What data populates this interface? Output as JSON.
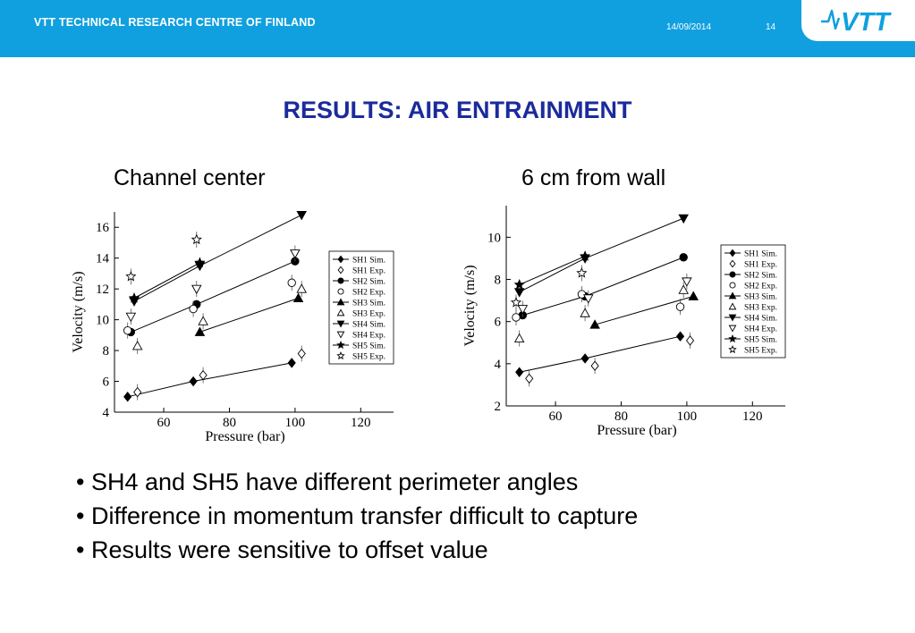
{
  "header": {
    "org": "VTT TECHNICAL RESEARCH CENTRE OF FINLAND",
    "date": "14/09/2014",
    "page": "14",
    "logo_text": "VTT",
    "brand_color": "#10a0df"
  },
  "title": "RESULTS: AIR ENTRAINMENT",
  "subtitles": {
    "left": "Channel center",
    "right": "6 cm from wall"
  },
  "bullets": [
    "SH4 and SH5 have different perimeter angles",
    "Difference in momentum transfer difficult to capture",
    "Results were sensitive to offset value"
  ],
  "chart_data": [
    {
      "type": "line",
      "title": "",
      "xlabel": "Pressure (bar)",
      "ylabel": "Velocity (m/s)",
      "xlim": [
        45,
        130
      ],
      "ylim": [
        4,
        17
      ],
      "xticks": [
        60,
        80,
        100,
        120
      ],
      "yticks": [
        4,
        6,
        8,
        10,
        12,
        14,
        16
      ],
      "legend": "right",
      "series": [
        {
          "name": "SH1 Sim.",
          "marker": "diamond",
          "filled": true,
          "line": true,
          "points": [
            [
              49,
              5.0
            ],
            [
              69,
              6.0
            ],
            [
              99,
              7.2
            ]
          ]
        },
        {
          "name": "SH1 Exp.",
          "marker": "diamond",
          "filled": false,
          "line": false,
          "points": [
            [
              52,
              5.3
            ],
            [
              72,
              6.4
            ],
            [
              102,
              7.8
            ]
          ]
        },
        {
          "name": "SH2 Sim.",
          "marker": "circle",
          "filled": true,
          "line": true,
          "points": [
            [
              50,
              9.2
            ],
            [
              70,
              11.0
            ],
            [
              100,
              13.8
            ]
          ]
        },
        {
          "name": "SH2 Exp.",
          "marker": "circle",
          "filled": false,
          "line": false,
          "points": [
            [
              49,
              9.3
            ],
            [
              69,
              10.7
            ],
            [
              99,
              12.4
            ]
          ]
        },
        {
          "name": "SH3 Sim.",
          "marker": "triangle-up",
          "filled": true,
          "line": true,
          "points": [
            [
              71,
              9.2
            ],
            [
              101,
              11.4
            ]
          ]
        },
        {
          "name": "SH3 Exp.",
          "marker": "triangle-up",
          "filled": false,
          "line": false,
          "points": [
            [
              52,
              8.3
            ],
            [
              72,
              9.9
            ],
            [
              102,
              12.0
            ]
          ]
        },
        {
          "name": "SH4 Sim.",
          "marker": "triangle-down",
          "filled": true,
          "line": true,
          "points": [
            [
              51,
              11.2
            ],
            [
              71,
              13.5
            ],
            [
              102,
              16.8
            ]
          ]
        },
        {
          "name": "SH4 Exp.",
          "marker": "triangle-down",
          "filled": false,
          "line": false,
          "points": [
            [
              50,
              10.2
            ],
            [
              70,
              12.0
            ],
            [
              100,
              14.3
            ]
          ]
        },
        {
          "name": "SH5 Sim.",
          "marker": "star",
          "filled": true,
          "line": true,
          "points": [
            [
              51,
              11.4
            ],
            [
              71,
              13.7
            ]
          ]
        },
        {
          "name": "SH5 Exp.",
          "marker": "star",
          "filled": false,
          "line": false,
          "points": [
            [
              50,
              12.8
            ],
            [
              70,
              15.2
            ]
          ]
        }
      ]
    },
    {
      "type": "line",
      "title": "",
      "xlabel": "Pressure (bar)",
      "ylabel": "Velocity (m/s)",
      "xlim": [
        45,
        130
      ],
      "ylim": [
        2,
        11.5
      ],
      "xticks": [
        60,
        80,
        100,
        120
      ],
      "yticks": [
        2,
        4,
        6,
        8,
        10
      ],
      "legend": "right",
      "series": [
        {
          "name": "SH1 Sim.",
          "marker": "diamond",
          "filled": true,
          "line": true,
          "points": [
            [
              49,
              3.6
            ],
            [
              69,
              4.25
            ],
            [
              98,
              5.3
            ]
          ]
        },
        {
          "name": "SH1 Exp.",
          "marker": "diamond",
          "filled": false,
          "line": false,
          "points": [
            [
              52,
              3.3
            ],
            [
              72,
              3.9
            ],
            [
              101,
              5.1
            ]
          ]
        },
        {
          "name": "SH2 Sim.",
          "marker": "circle",
          "filled": true,
          "line": true,
          "points": [
            [
              50,
              6.3
            ],
            [
              69,
              7.2
            ],
            [
              99,
              9.05
            ]
          ]
        },
        {
          "name": "SH2 Exp.",
          "marker": "circle",
          "filled": false,
          "line": false,
          "points": [
            [
              48,
              6.2
            ],
            [
              68,
              7.3
            ],
            [
              98,
              6.7
            ]
          ]
        },
        {
          "name": "SH3 Sim.",
          "marker": "triangle-up",
          "filled": true,
          "line": true,
          "points": [
            [
              72,
              5.85
            ],
            [
              102,
              7.2
            ]
          ]
        },
        {
          "name": "SH3 Exp.",
          "marker": "triangle-up",
          "filled": false,
          "line": false,
          "points": [
            [
              49,
              5.2
            ],
            [
              69,
              6.4
            ],
            [
              99,
              7.5
            ]
          ]
        },
        {
          "name": "SH4 Sim.",
          "marker": "triangle-down",
          "filled": true,
          "line": true,
          "points": [
            [
              49,
              7.4
            ],
            [
              69,
              9.0
            ],
            [
              99,
              10.9
            ]
          ]
        },
        {
          "name": "SH4 Exp.",
          "marker": "triangle-down",
          "filled": false,
          "line": false,
          "points": [
            [
              50,
              6.6
            ],
            [
              70,
              7.1
            ],
            [
              100,
              7.9
            ]
          ]
        },
        {
          "name": "SH5 Sim.",
          "marker": "star",
          "filled": true,
          "line": true,
          "points": [
            [
              49,
              7.75
            ],
            [
              69,
              9.1
            ]
          ]
        },
        {
          "name": "SH5 Exp.",
          "marker": "star",
          "filled": false,
          "line": false,
          "points": [
            [
              48,
              6.9
            ],
            [
              68,
              8.3
            ]
          ]
        }
      ]
    }
  ]
}
